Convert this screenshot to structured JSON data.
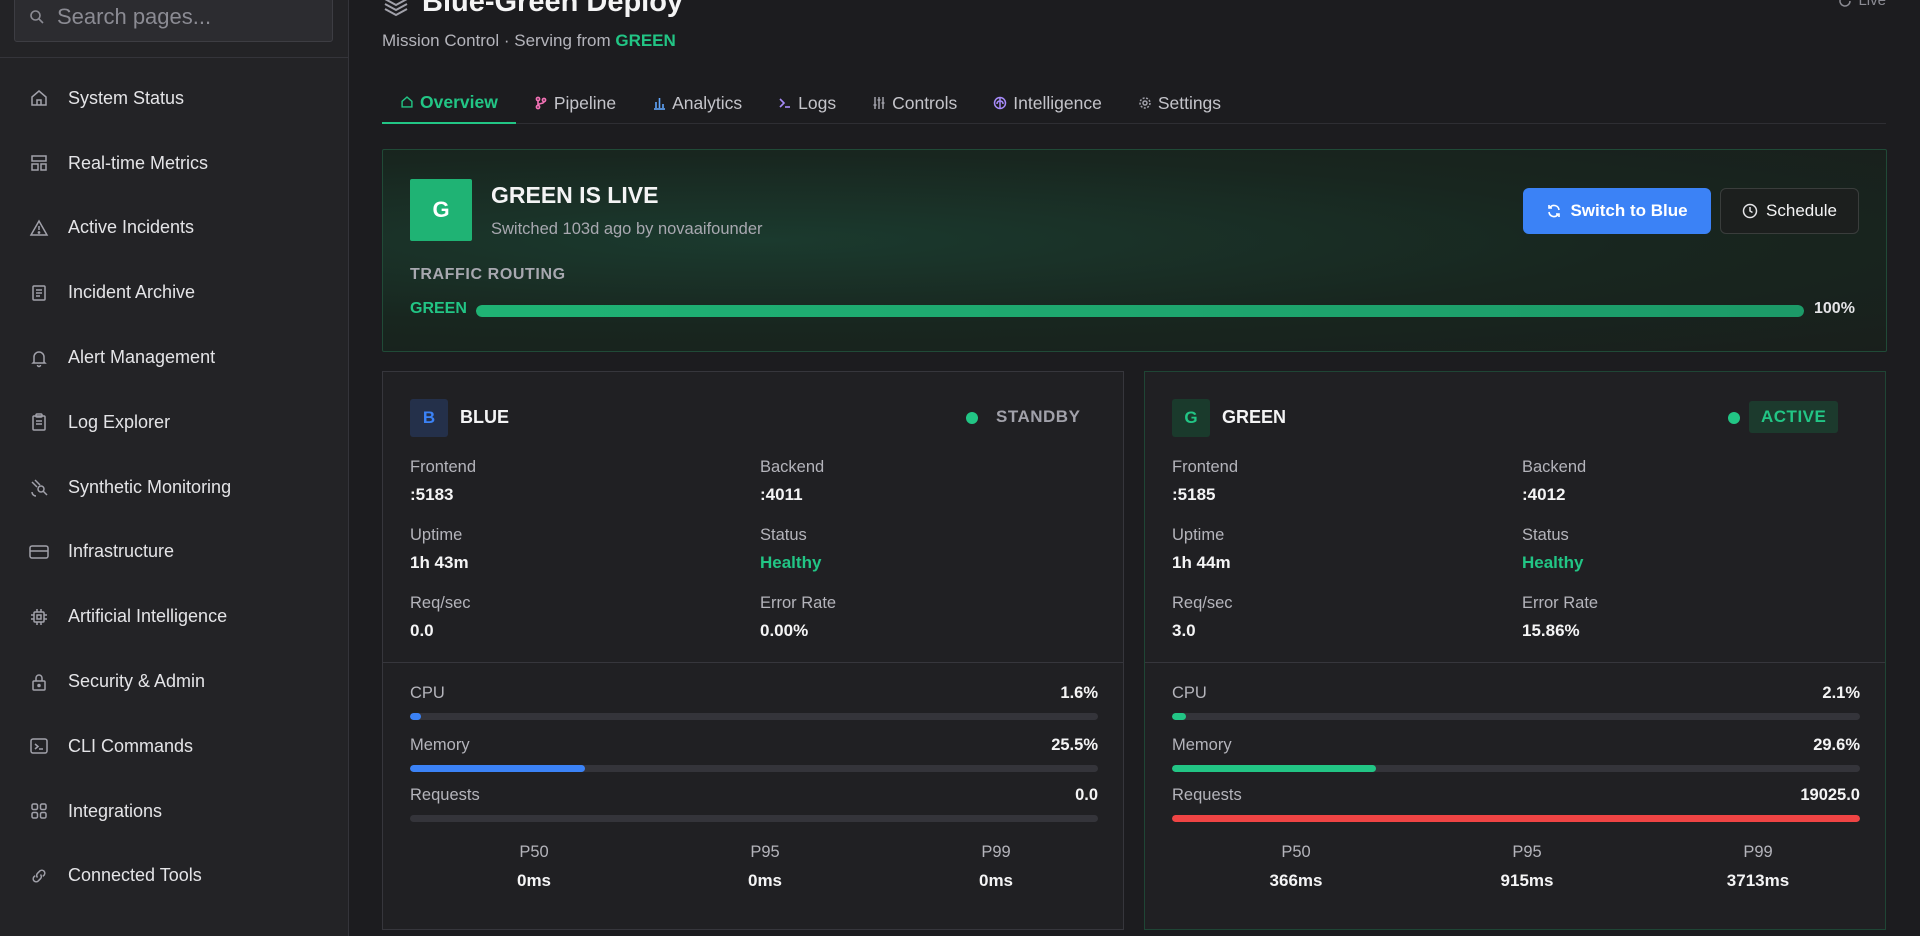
{
  "sidebar": {
    "search_placeholder": "Search pages...",
    "items": [
      {
        "label": "System Status",
        "icon": "home-icon"
      },
      {
        "label": "Real-time Metrics",
        "icon": "layout-icon"
      },
      {
        "label": "Active Incidents",
        "icon": "alert-triangle-icon"
      },
      {
        "label": "Incident Archive",
        "icon": "archive-icon"
      },
      {
        "label": "Alert Management",
        "icon": "bell-icon"
      },
      {
        "label": "Log Explorer",
        "icon": "clipboard-icon"
      },
      {
        "label": "Synthetic Monitoring",
        "icon": "satellite-icon"
      },
      {
        "label": "Infrastructure",
        "icon": "server-icon"
      },
      {
        "label": "Artificial Intelligence",
        "icon": "chip-icon"
      },
      {
        "label": "Security & Admin",
        "icon": "lock-icon"
      },
      {
        "label": "CLI Commands",
        "icon": "terminal-icon"
      },
      {
        "label": "Integrations",
        "icon": "grid-icon"
      },
      {
        "label": "Connected Tools",
        "icon": "link-icon"
      }
    ]
  },
  "header": {
    "title": "Blue-Green Deploy",
    "subtitle_prefix": "Mission Control · Serving from ",
    "subtitle_env": "GREEN",
    "live_label": "Live"
  },
  "tabs": [
    {
      "label": "Overview",
      "icon": "home-icon",
      "active": true
    },
    {
      "label": "Pipeline",
      "icon": "branch-icon"
    },
    {
      "label": "Analytics",
      "icon": "bar-chart-icon"
    },
    {
      "label": "Logs",
      "icon": "terminal-icon"
    },
    {
      "label": "Controls",
      "icon": "sliders-icon"
    },
    {
      "label": "Intelligence",
      "icon": "brain-icon"
    },
    {
      "label": "Settings",
      "icon": "gear-icon"
    }
  ],
  "live_panel": {
    "badge": "G",
    "title": "GREEN IS LIVE",
    "subtitle": "Switched 103d ago by novaaifounder",
    "switch_label": "Switch to Blue",
    "schedule_label": "Schedule",
    "routing_label": "TRAFFIC ROUTING",
    "routing_env": "GREEN",
    "routing_pct": "100%",
    "routing_fraction": 1.0
  },
  "blue": {
    "badge": "B",
    "name": "BLUE",
    "status": "STANDBY",
    "frontend_label": "Frontend",
    "frontend": ":5183",
    "backend_label": "Backend",
    "backend": ":4011",
    "uptime_label": "Uptime",
    "uptime": "1h 43m",
    "status_label": "Status",
    "health": "Healthy",
    "reqsec_label": "Req/sec",
    "reqsec": "0.0",
    "error_label": "Error Rate",
    "error": "0.00%",
    "cpu_label": "CPU",
    "cpu": "1.6%",
    "cpu_fraction": 0.016,
    "mem_label": "Memory",
    "mem": "25.5%",
    "mem_fraction": 0.255,
    "req_label": "Requests",
    "req": "0.0",
    "req_fraction": 0.0,
    "p50_label": "P50",
    "p50": "0ms",
    "p95_label": "P95",
    "p95": "0ms",
    "p99_label": "P99",
    "p99": "0ms",
    "bar_color": "#3b82f6"
  },
  "green": {
    "badge": "G",
    "name": "GREEN",
    "status": "ACTIVE",
    "frontend_label": "Frontend",
    "frontend": ":5185",
    "backend_label": "Backend",
    "backend": ":4012",
    "uptime_label": "Uptime",
    "uptime": "1h 44m",
    "status_label": "Status",
    "health": "Healthy",
    "reqsec_label": "Req/sec",
    "reqsec": "3.0",
    "error_label": "Error Rate",
    "error": "15.86%",
    "cpu_label": "CPU",
    "cpu": "2.1%",
    "cpu_fraction": 0.021,
    "mem_label": "Memory",
    "mem": "29.6%",
    "mem_fraction": 0.296,
    "req_label": "Requests",
    "req": "19025.0",
    "req_fraction": 1.0,
    "p50_label": "P50",
    "p50": "366ms",
    "p95_label": "P95",
    "p95": "915ms",
    "p99_label": "P99",
    "p99": "3713ms",
    "bar_color": "#22c585",
    "req_bar_color": "#ef4444"
  }
}
